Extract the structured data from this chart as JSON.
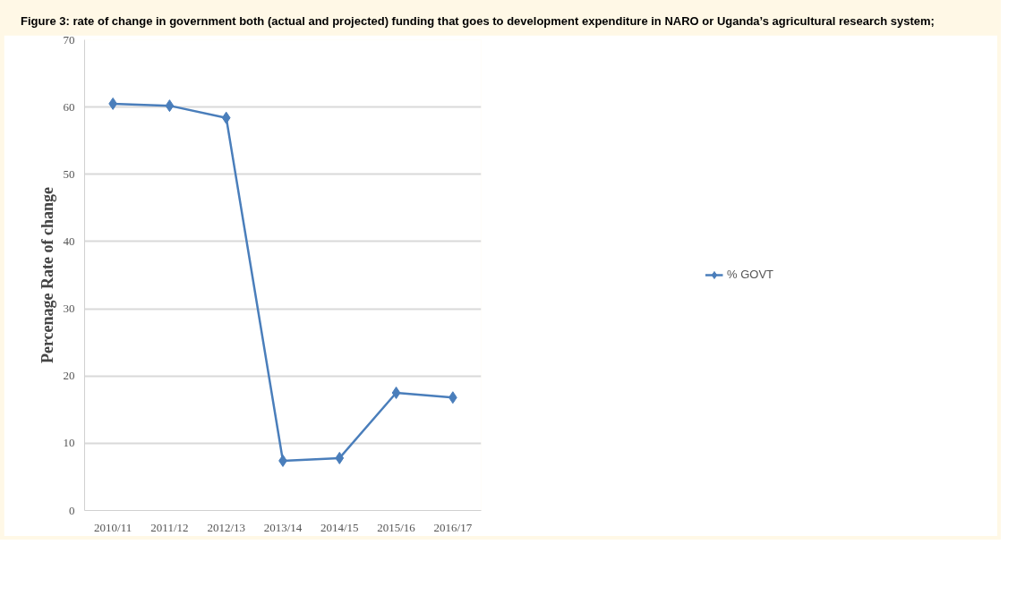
{
  "chart_data": {
    "type": "line",
    "title": "Figure 3: rate of change in government both (actual and projected) funding that goes to development expenditure in NARO or Uganda’s agricultural research system;",
    "ylabel": "Percenage Rate of change",
    "categories": [
      "2010/11",
      "2011/12",
      "2012/13",
      "2013/14",
      "2014/15",
      "2015/16",
      "2016/17"
    ],
    "series": [
      {
        "name": "% GOVT",
        "color": "#4a7ebb",
        "values": [
          60.5,
          60.2,
          58.4,
          7.4,
          7.8,
          17.5,
          16.8
        ]
      }
    ],
    "ylim": [
      0,
      70
    ],
    "yticks": [
      0,
      10,
      20,
      30,
      40,
      50,
      60,
      70
    ],
    "grid": "y",
    "legend": "right",
    "marker": "diamond",
    "line_style": "solid"
  }
}
